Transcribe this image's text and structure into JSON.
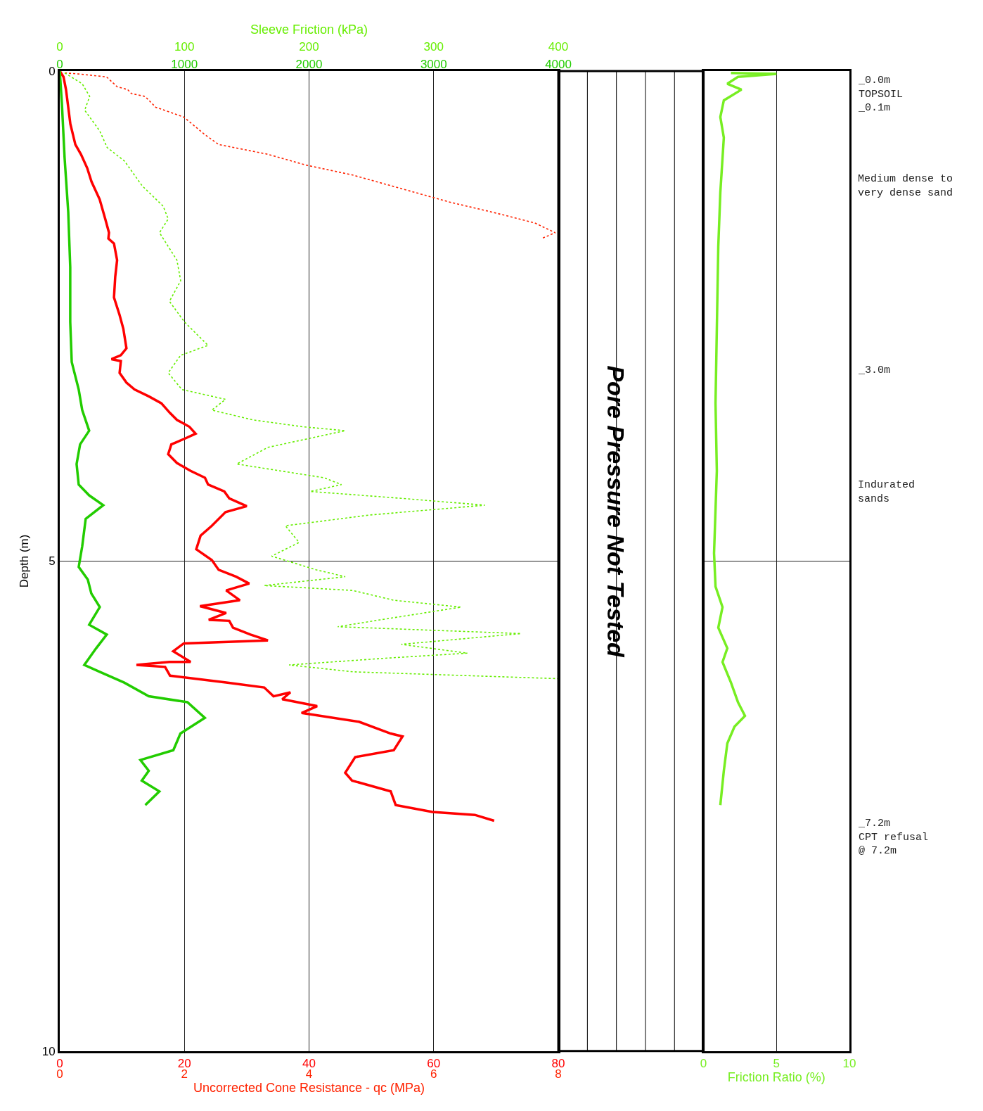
{
  "chart_data": [
    {
      "type": "line",
      "ylabel": "Depth (m)",
      "xlim": [
        0,
        80
      ],
      "xticks": [
        0,
        20,
        40,
        60,
        80
      ],
      "x2lim": [
        0,
        4000
      ],
      "x2ticks": [
        0,
        1000,
        2000,
        3000,
        4000
      ],
      "ylim": [
        10,
        0
      ],
      "yticks": [
        0,
        5,
        10
      ],
      "grid": true,
      "series": [
        {
          "color": "#ff0000",
          "line_style": "solid",
          "x": [
            0,
            0.6,
            1.0,
            1.7,
            2.5,
            3.4,
            4.4,
            5.1,
            6.4,
            7.3,
            7.9,
            7.8,
            8.7,
            9.2,
            8.9,
            8.7,
            9.6,
            10.2,
            10.7,
            9.8,
            8.3,
            9.8,
            9.6,
            10.7,
            12.0,
            14.3,
            16.3,
            17.7,
            18.8,
            20.8,
            21.8,
            20.1,
            17.9,
            17.4,
            18.8,
            21.0,
            23.3,
            23.8,
            26.4,
            27.2,
            30.0,
            26.6,
            24.4,
            22.6,
            21.9,
            24.4,
            25.5,
            28.3,
            30.4,
            26.7,
            28.9,
            22.5,
            26.7,
            23.9,
            27.2,
            27.8,
            30.6,
            33.4,
            19.9,
            18.2,
            21.0,
            17.6,
            12.3,
            16.9,
            17.7,
            26.7,
            32.8,
            34.3,
            37.0,
            35.7,
            41.3,
            38.8,
            48.0,
            53.1,
            55.0,
            53.6,
            47.4,
            45.8,
            46.9,
            53.1,
            53.9,
            59.8,
            66.6,
            69.7
          ],
          "values": [
            0,
            0.06,
            0.19,
            0.54,
            0.75,
            0.85,
            0.99,
            1.13,
            1.31,
            1.51,
            1.65,
            1.71,
            1.76,
            1.93,
            2.1,
            2.31,
            2.49,
            2.63,
            2.83,
            2.9,
            2.94,
            2.96,
            3.08,
            3.18,
            3.25,
            3.32,
            3.39,
            3.49,
            3.56,
            3.63,
            3.7,
            3.75,
            3.81,
            3.91,
            4.0,
            4.08,
            4.15,
            4.22,
            4.29,
            4.36,
            4.44,
            4.5,
            4.64,
            4.74,
            4.88,
            4.99,
            5.09,
            5.16,
            5.23,
            5.3,
            5.4,
            5.46,
            5.53,
            5.6,
            5.61,
            5.68,
            5.75,
            5.81,
            5.84,
            5.92,
            6.03,
            6.03,
            6.06,
            6.08,
            6.17,
            6.24,
            6.29,
            6.38,
            6.34,
            6.41,
            6.48,
            6.55,
            6.64,
            6.76,
            6.79,
            6.93,
            7.0,
            7.16,
            7.24,
            7.35,
            7.49,
            7.56,
            7.59,
            7.65
          ]
        },
        {
          "color": "#22cc00",
          "line_style": "solid",
          "axis": "x2",
          "x": [
            0,
            17,
            39,
            68,
            84,
            84,
            96,
            152,
            180,
            236,
            163,
            135,
            152,
            236,
            349,
            208,
            180,
            152,
            225,
            253,
            321,
            236,
            377,
            292,
            197,
            321,
            517,
            714,
            1024,
            1164,
            968,
            911,
            647,
            714,
            658,
            799,
            686
          ],
          "values": [
            0,
            0.33,
            0.89,
            1.44,
            2.0,
            2.56,
            2.97,
            3.25,
            3.46,
            3.67,
            3.81,
            4.01,
            4.22,
            4.33,
            4.43,
            4.57,
            4.85,
            5.06,
            5.19,
            5.33,
            5.47,
            5.65,
            5.75,
            5.89,
            6.06,
            6.13,
            6.24,
            6.38,
            6.44,
            6.6,
            6.76,
            6.93,
            7.03,
            7.14,
            7.24,
            7.35,
            7.49
          ]
        }
      ]
    },
    {
      "type": "line",
      "xlabel": "Uncorrected Cone Resistance - qc (MPa)",
      "x2label": "Sleeve Friction (kPa)",
      "xlim": [
        0,
        8
      ],
      "xticks": [
        0,
        2,
        4,
        6,
        8
      ],
      "x2lim": [
        0,
        400
      ],
      "x2ticks": [
        0,
        100,
        200,
        300,
        400
      ],
      "ylim": [
        10,
        0
      ],
      "tick_labels": "x",
      "series": [
        {
          "color": "#ff2200",
          "line_style": "dotted",
          "x": [
            0.08,
            0.3,
            0.75,
            0.92,
            1.09,
            1.15,
            1.37,
            1.54,
            1.99,
            2.33,
            2.55,
            3.34,
            3.95,
            4.69,
            5.48,
            6.27,
            6.94,
            7.62,
            7.95,
            7.73
          ],
          "values": [
            0.02,
            0.03,
            0.06,
            0.16,
            0.19,
            0.23,
            0.26,
            0.37,
            0.47,
            0.65,
            0.75,
            0.85,
            0.96,
            1.06,
            1.2,
            1.34,
            1.44,
            1.55,
            1.65,
            1.71
          ]
        },
        {
          "color": "#66ee00",
          "line_style": "dotted",
          "axis": "x2",
          "x": [
            4,
            18,
            24,
            20,
            32,
            38,
            52,
            66,
            83,
            87,
            80,
            94,
            97,
            88,
            100,
            119,
            97,
            87,
            98,
            133,
            122,
            155,
            195,
            229,
            167,
            142,
            212,
            226,
            201,
            274,
            341,
            249,
            181,
            192,
            170,
            206,
            229,
            164,
            235,
            268,
            322,
            257,
            223,
            370,
            274,
            327,
            263,
            184,
            235,
            400
          ],
          "values": [
            0.02,
            0.13,
            0.26,
            0.4,
            0.61,
            0.78,
            0.92,
            1.17,
            1.38,
            1.51,
            1.65,
            1.93,
            2.14,
            2.35,
            2.56,
            2.8,
            2.9,
            3.08,
            3.25,
            3.35,
            3.46,
            3.56,
            3.63,
            3.67,
            3.84,
            4.01,
            4.15,
            4.22,
            4.29,
            4.36,
            4.43,
            4.53,
            4.64,
            4.81,
            4.95,
            5.09,
            5.16,
            5.25,
            5.3,
            5.4,
            5.47,
            5.6,
            5.67,
            5.74,
            5.85,
            5.94,
            5.99,
            6.06,
            6.13,
            6.2
          ]
        }
      ]
    },
    {
      "type": "other",
      "annotations": [
        "Pore Pressure Not Tested"
      ]
    },
    {
      "type": "line",
      "xlabel": "Friction Ratio (%)",
      "xlim": [
        0,
        10
      ],
      "xticks": [
        0,
        5,
        10
      ],
      "ylim": [
        10,
        0
      ],
      "yticks": [
        0,
        5,
        10
      ],
      "grid": true,
      "tick_labels": "x",
      "series": [
        {
          "color": "#77ee22",
          "line_style": "solid",
          "x": [
            1.88,
            5.0,
            2.36,
            1.63,
            2.6,
            1.39,
            1.15,
            1.39,
            1.15,
            1.01,
            0.91,
            0.82,
            0.91,
            0.72,
            0.82,
            1.3,
            1.01,
            1.63,
            1.3,
            1.88,
            2.36,
            2.84,
            2.12,
            1.63,
            1.39,
            1.15
          ],
          "values": [
            0.02,
            0.03,
            0.06,
            0.13,
            0.19,
            0.3,
            0.47,
            0.68,
            1.24,
            1.79,
            2.63,
            3.39,
            4.08,
            4.92,
            5.26,
            5.47,
            5.68,
            5.89,
            6.03,
            6.24,
            6.44,
            6.58,
            6.69,
            6.86,
            7.14,
            7.49
          ]
        }
      ],
      "annotations": [
        "_0.0m\nTOPSOIL\n_0.1m",
        "Medium dense to\nvery dense sand",
        "_3.0m",
        "Indurated\nsands",
        "_7.2m\nCPT refusal\n@ 7.2m"
      ]
    }
  ]
}
